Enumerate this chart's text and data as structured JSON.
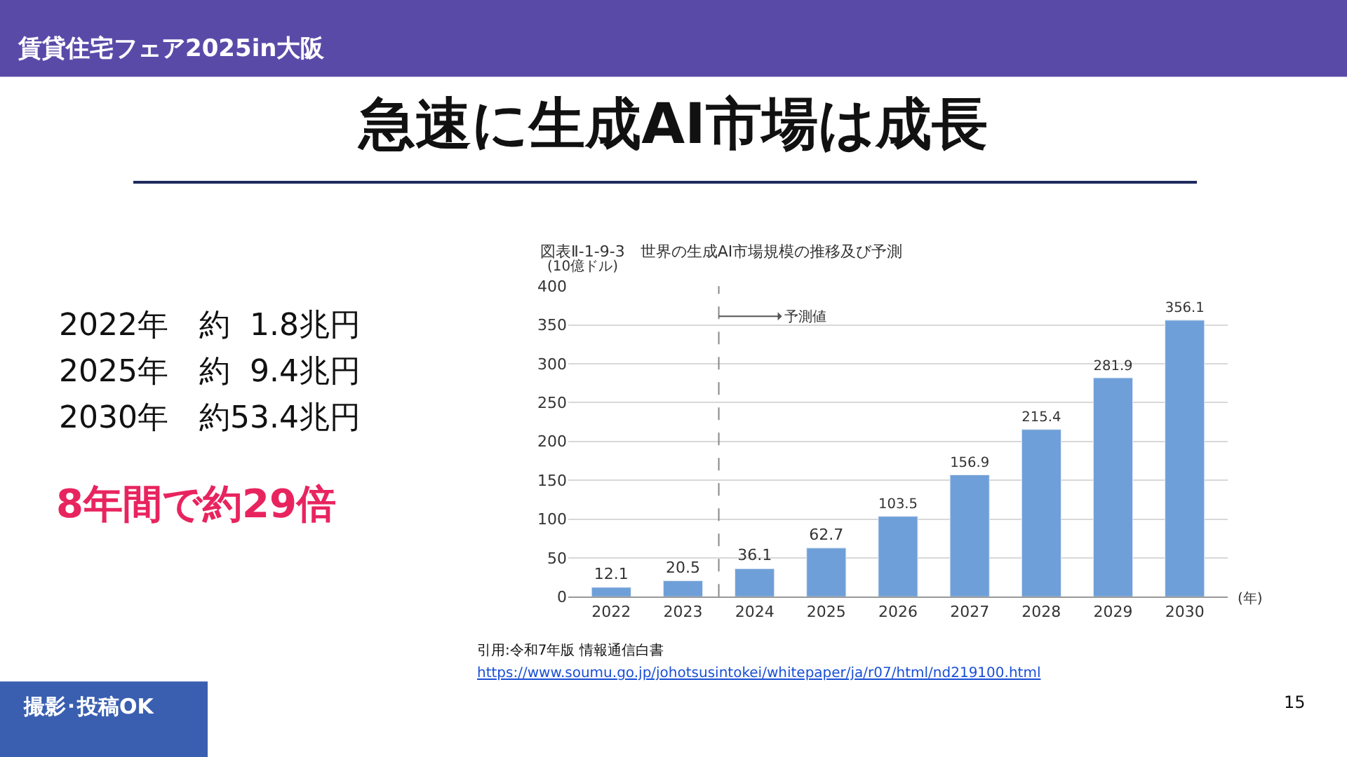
{
  "chart_data": {
    "type": "bar",
    "title": "急速に生成AI市場は成長",
    "subtitle": "図表Ⅱ-1-9-3　世界の生成AI市場規模の推移及び予測",
    "ylabel": "(10億ドル)",
    "xlabel": "(年)",
    "x": [
      2022,
      2023,
      2024,
      2025,
      2026,
      2027,
      2028,
      2029,
      2030
    ],
    "values": [
      12.1,
      20.5,
      36.1,
      62.7,
      103.5,
      156.9,
      215.4,
      281.9,
      356.1
    ],
    "color": "#6f9fd8",
    "data_labels": true,
    "xlim": [
      2021.4,
      2030.6
    ],
    "xticks": [
      2022,
      2023,
      2024,
      2025,
      2026,
      2027,
      2028,
      2029,
      2030
    ],
    "ylim": [
      0,
      400
    ],
    "yticks": [
      0,
      50,
      100,
      150,
      200,
      250,
      300,
      350,
      400
    ],
    "grid": "y",
    "ref_lines": [
      {
        "axis": "x",
        "value": 2023.5,
        "label": "予測値",
        "line_style": "dashed",
        "color": "#888888"
      }
    ],
    "annotations": [
      "賃貸住宅フェア2025in大阪",
      "2022年　約  1.8兆円",
      "2025年　約  9.4兆円",
      "2030年　約53.4兆円",
      "8年間で約29倍",
      "引用:令和7年版 情報通信白書",
      "https://www.soumu.go.jp/johotsusintokei/whitepaper/ja/r07/html/nd219100.html",
      "撮影･投稿OK",
      "15"
    ]
  }
}
